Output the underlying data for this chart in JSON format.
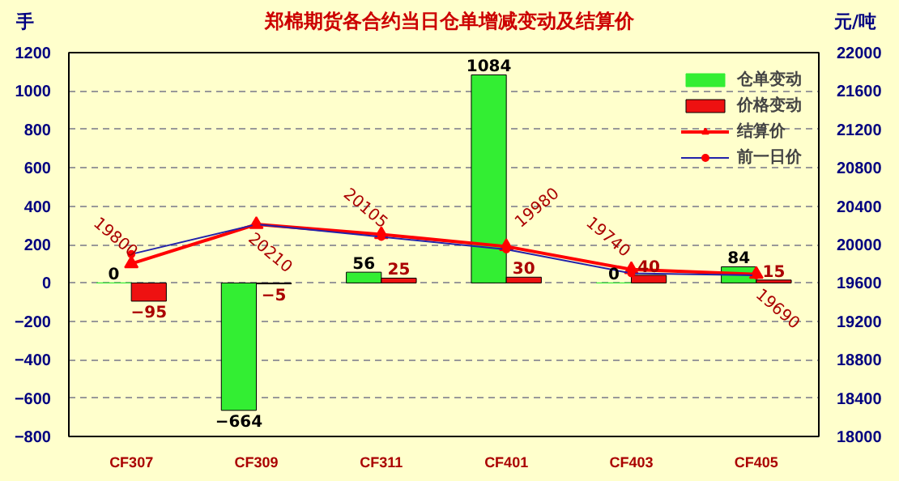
{
  "chart_data": {
    "type": "bar",
    "title": "郑棉期货各合约当日仓单增减变动及结算价",
    "ylabel": "手",
    "y2label": "元/吨",
    "categories": [
      "CF307",
      "CF309",
      "CF311",
      "CF401",
      "CF403",
      "CF405"
    ],
    "series": [
      {
        "name": "仓单变动",
        "color": "#33ee33",
        "values": [
          0,
          -664,
          56,
          1084,
          0,
          84
        ],
        "value_labels": [
          "0",
          "−664",
          "56",
          "1084",
          "0",
          "84"
        ]
      },
      {
        "name": "价格变动",
        "color": "#ee1111",
        "values": [
          -95,
          -5,
          25,
          30,
          40,
          15
        ],
        "value_labels": [
          "−95",
          "−5",
          "25",
          "30",
          "40",
          "15"
        ]
      },
      {
        "name": "结算价",
        "type": "line",
        "axis": "y2",
        "color": "#ff0000",
        "marker": "triangle",
        "values": [
          19800,
          20210,
          20105,
          19980,
          19740,
          19690
        ],
        "value_labels": [
          "19800",
          "20210",
          "20105",
          "19980",
          "19740",
          "19690"
        ]
      },
      {
        "name": "前一日价",
        "type": "line",
        "axis": "y2",
        "color": "#2222aa",
        "marker": "circle",
        "values": [
          19900,
          20210,
          20080,
          19950,
          19700,
          19680
        ]
      }
    ],
    "ylim": [
      -800,
      1200
    ],
    "yticks": [
      -800,
      -600,
      -400,
      -200,
      0,
      200,
      400,
      600,
      800,
      1000,
      1200
    ],
    "y2lim": [
      18000,
      22000
    ],
    "y2ticks": [
      18000,
      18400,
      18800,
      19200,
      19600,
      20000,
      20400,
      20800,
      21200,
      21600,
      22000
    ],
    "grid": "y",
    "legend": "top right"
  }
}
